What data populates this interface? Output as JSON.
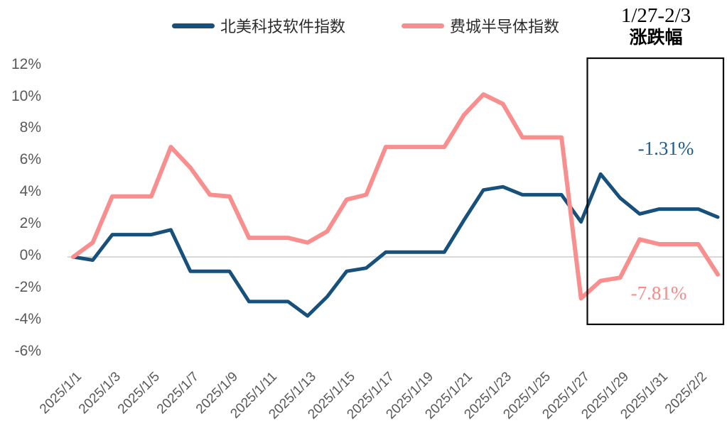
{
  "legend": [
    {
      "label": "北美科技软件指数",
      "color": "#17507B"
    },
    {
      "label": "费城半导体指数",
      "color": "#F88F8E"
    }
  ],
  "annotation_box": {
    "title_line1": "1/27-2/3",
    "title_line2": "涨跌幅",
    "series1_change": "-1.31%",
    "series2_change": "-7.81%",
    "series1_color": "#1D5C8D",
    "series2_color": "#F88A89",
    "border_color": "#0a0a0a"
  },
  "chart_data": {
    "type": "line",
    "x": [
      "2025/1/1",
      "2025/1/2",
      "2025/1/3",
      "2025/1/4",
      "2025/1/5",
      "2025/1/6",
      "2025/1/7",
      "2025/1/8",
      "2025/1/9",
      "2025/1/10",
      "2025/1/11",
      "2025/1/12",
      "2025/1/13",
      "2025/1/14",
      "2025/1/15",
      "2025/1/16",
      "2025/1/17",
      "2025/1/18",
      "2025/1/19",
      "2025/1/20",
      "2025/1/21",
      "2025/1/22",
      "2025/1/23",
      "2025/1/24",
      "2025/1/25",
      "2025/1/26",
      "2025/1/27",
      "2025/1/28",
      "2025/1/29",
      "2025/1/30",
      "2025/1/31",
      "2025/2/1",
      "2025/2/2",
      "2025/2/3"
    ],
    "x_tick_labels": [
      "2025/1/1",
      "2025/1/3",
      "2025/1/5",
      "2025/1/7",
      "2025/1/9",
      "2025/1/11",
      "2025/1/13",
      "2025/1/15",
      "2025/1/17",
      "2025/1/19",
      "2025/1/21",
      "2025/1/23",
      "2025/1/25",
      "2025/1/27",
      "2025/1/29",
      "2025/1/31",
      "2025/2/2"
    ],
    "series": [
      {
        "name": "北美科技软件指数",
        "color": "#17507B",
        "values": [
          0.0,
          -0.2,
          1.4,
          1.4,
          1.4,
          1.7,
          -0.9,
          -0.9,
          -0.9,
          -2.8,
          -2.8,
          -2.8,
          -3.7,
          -2.5,
          -0.9,
          -0.7,
          0.3,
          0.3,
          0.3,
          0.3,
          2.3,
          4.2,
          4.4,
          3.9,
          3.9,
          3.9,
          2.2,
          5.2,
          3.7,
          2.7,
          3.0,
          3.0,
          3.0,
          2.5
        ]
      },
      {
        "name": "费城半导体指数",
        "color": "#F88F8E",
        "values": [
          0.0,
          0.9,
          3.8,
          3.8,
          3.8,
          6.9,
          5.6,
          3.9,
          3.8,
          1.2,
          1.2,
          1.2,
          0.9,
          1.6,
          3.6,
          3.9,
          6.9,
          6.9,
          6.9,
          6.9,
          8.9,
          10.2,
          9.6,
          7.5,
          7.5,
          7.5,
          -2.6,
          -1.5,
          -1.3,
          1.1,
          0.8,
          0.8,
          0.8,
          -1.1
        ]
      }
    ],
    "y_tick_values": [
      12,
      10,
      8,
      6,
      4,
      2,
      0,
      -2,
      -4,
      -6
    ],
    "y_tick_labels": [
      "12%",
      "10%",
      "8%",
      "6%",
      "4%",
      "2%",
      "0%",
      "-2%",
      "-4%",
      "-6%"
    ],
    "ylim": [
      -6,
      12
    ],
    "grid": "horizontal line at 0% only",
    "gridline_color": "#D9D9D9",
    "legend_position": "top"
  }
}
